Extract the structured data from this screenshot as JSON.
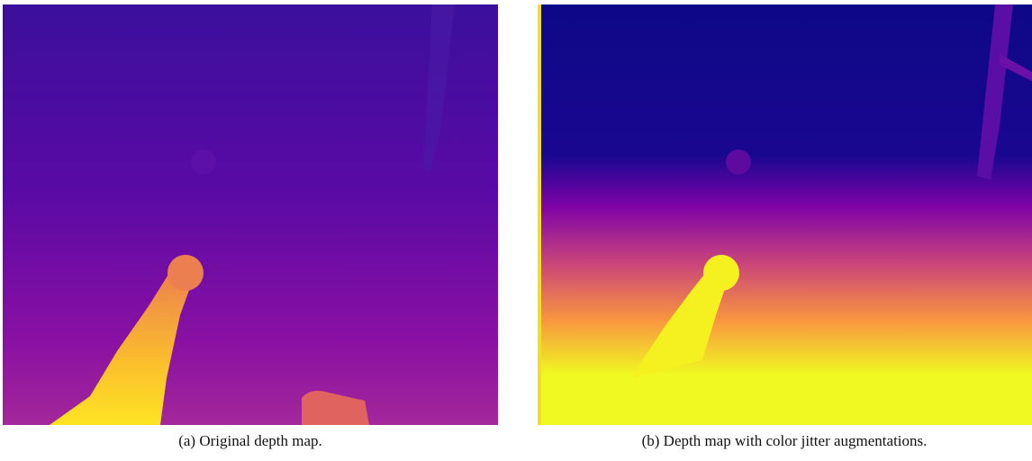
{
  "figure": {
    "captions": [
      "(a) Original depth map.",
      "(b) Depth map with color jitter augmentations."
    ]
  }
}
